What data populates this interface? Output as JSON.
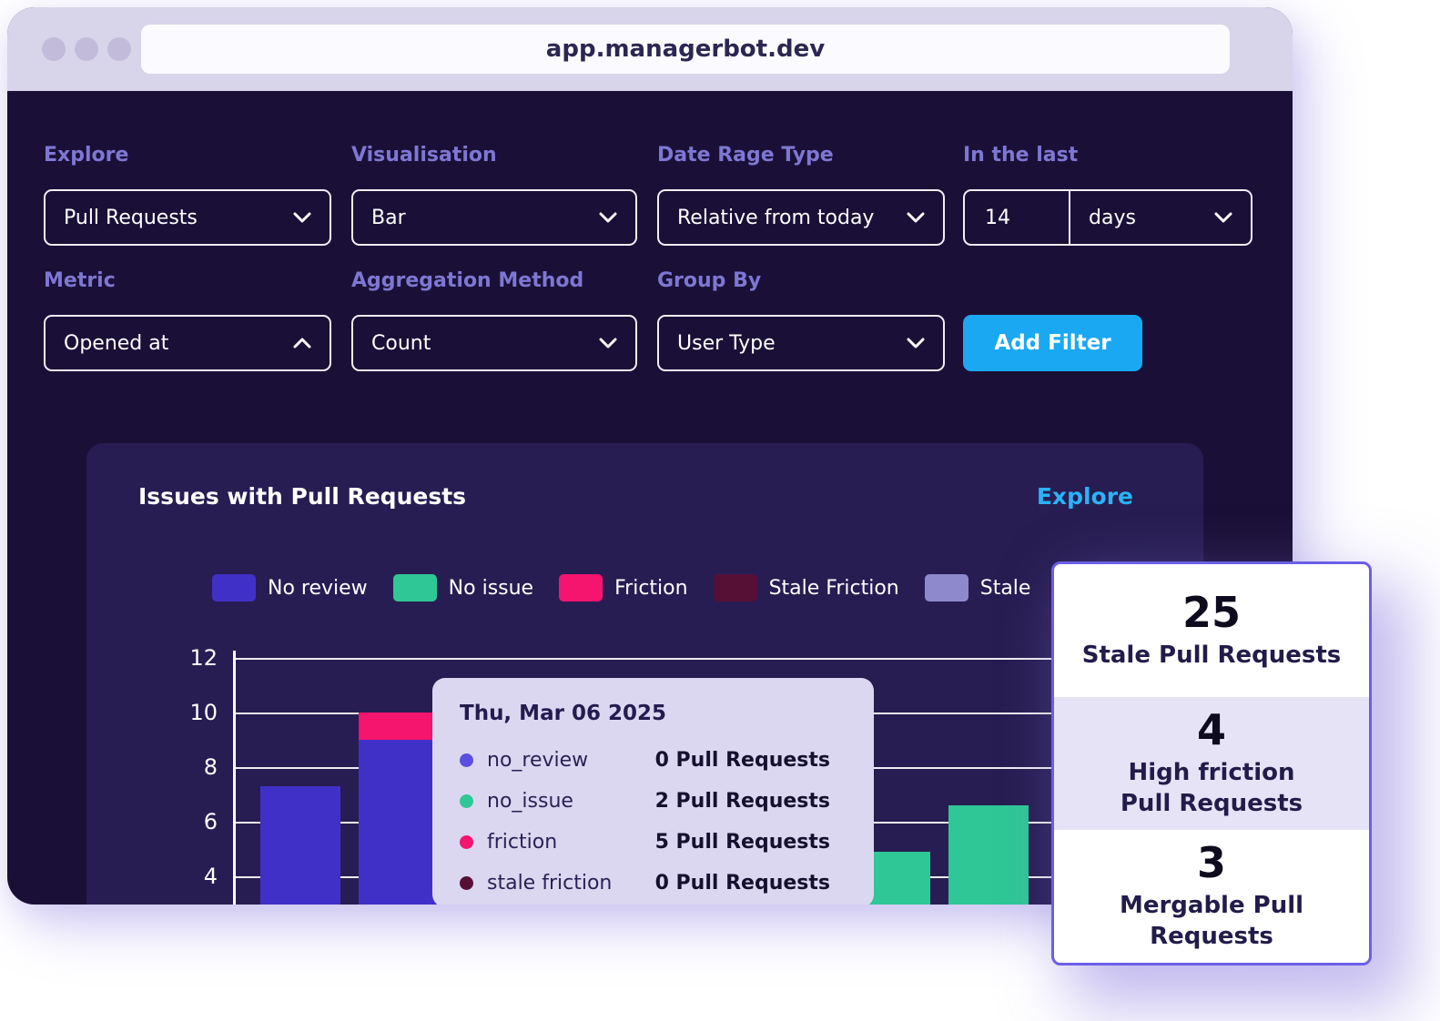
{
  "browser": {
    "url": "app.managerbot.dev"
  },
  "filters": {
    "rows": [
      {
        "groups": [
          {
            "label": "Explore",
            "kind": "select",
            "value": "Pull Requests",
            "chevron": "down"
          },
          {
            "label": "Visualisation",
            "kind": "select",
            "value": "Bar",
            "chevron": "down"
          },
          {
            "label": "Date Rage Type",
            "kind": "select",
            "value": "Relative from today",
            "chevron": "down"
          },
          {
            "label": "In the last",
            "kind": "number-select",
            "number": "14",
            "value": "days",
            "chevron": "down"
          }
        ]
      },
      {
        "groups": [
          {
            "label": "Metric",
            "kind": "select",
            "value": "Opened at",
            "chevron": "up"
          },
          {
            "label": "Aggregation Method",
            "kind": "select",
            "value": "Count",
            "chevron": "down"
          },
          {
            "label": "Group By",
            "kind": "select",
            "value": "User Type",
            "chevron": "down"
          },
          {
            "label": "",
            "kind": "button",
            "value": "Add Filter"
          }
        ]
      }
    ]
  },
  "chart_card": {
    "title": "Issues with Pull Requests",
    "explore_link": "Explore"
  },
  "chart_data": {
    "type": "bar",
    "stacked": true,
    "title": "Issues with Pull Requests",
    "yticks": [
      12,
      10,
      8,
      6,
      4
    ],
    "y_visible_range": [
      3,
      12
    ],
    "grid": true,
    "legend_position": "top",
    "legend": [
      {
        "label": "No review",
        "key": "no_review",
        "color": "#4130c8"
      },
      {
        "label": "No issue",
        "key": "no_issue",
        "color": "#2fc795"
      },
      {
        "label": "Friction",
        "key": "friction",
        "color": "#f5146e"
      },
      {
        "label": "Stale Friction",
        "key": "stale_friction",
        "color": "#561036"
      },
      {
        "label": "Stale",
        "key": "stale",
        "color": "#8d89cc"
      }
    ],
    "bars": [
      {
        "index": 0,
        "segments": [
          {
            "key": "no_review",
            "value": 7.3
          }
        ]
      },
      {
        "index": 1,
        "segments": [
          {
            "key": "no_review",
            "value": 9
          },
          {
            "key": "friction",
            "value": 1
          }
        ]
      },
      {
        "index": 6,
        "segments": [
          {
            "key": "no_issue",
            "value": 4.9
          }
        ]
      },
      {
        "index": 7,
        "segments": [
          {
            "key": "no_issue",
            "value": 6.6
          }
        ]
      }
    ]
  },
  "tooltip": {
    "date": "Thu, Mar 06 2025",
    "rows": [
      {
        "label": "no_review",
        "value": "0 Pull Requests",
        "color": "#5a4fe0"
      },
      {
        "label": "no_issue",
        "value": "2 Pull Requests",
        "color": "#2fc795"
      },
      {
        "label": "friction",
        "value": "5 Pull Requests",
        "color": "#f5146e"
      },
      {
        "label": "stale friction",
        "value": "0 Pull Requests",
        "color": "#561036"
      }
    ]
  },
  "stats_card": {
    "items": [
      {
        "value": "25",
        "label_lines": [
          "Stale Pull Requests"
        ],
        "highlighted": false
      },
      {
        "value": "4",
        "label_lines": [
          "High friction",
          "Pull Requests"
        ],
        "highlighted": true
      },
      {
        "value": "3",
        "label_lines": [
          "Mergable Pull Requests"
        ],
        "highlighted": false
      }
    ]
  },
  "colors": {
    "accent_blue": "#1ba8f3",
    "link_blue": "#2bb2f7",
    "label_purple": "#7e77d2",
    "window_bg": "#1a1037",
    "card_bg": "#271d52",
    "chrome_bg": "#d8d4ea",
    "tooltip_bg": "#dcd7f1",
    "stats_border": "#6c5fe6"
  }
}
